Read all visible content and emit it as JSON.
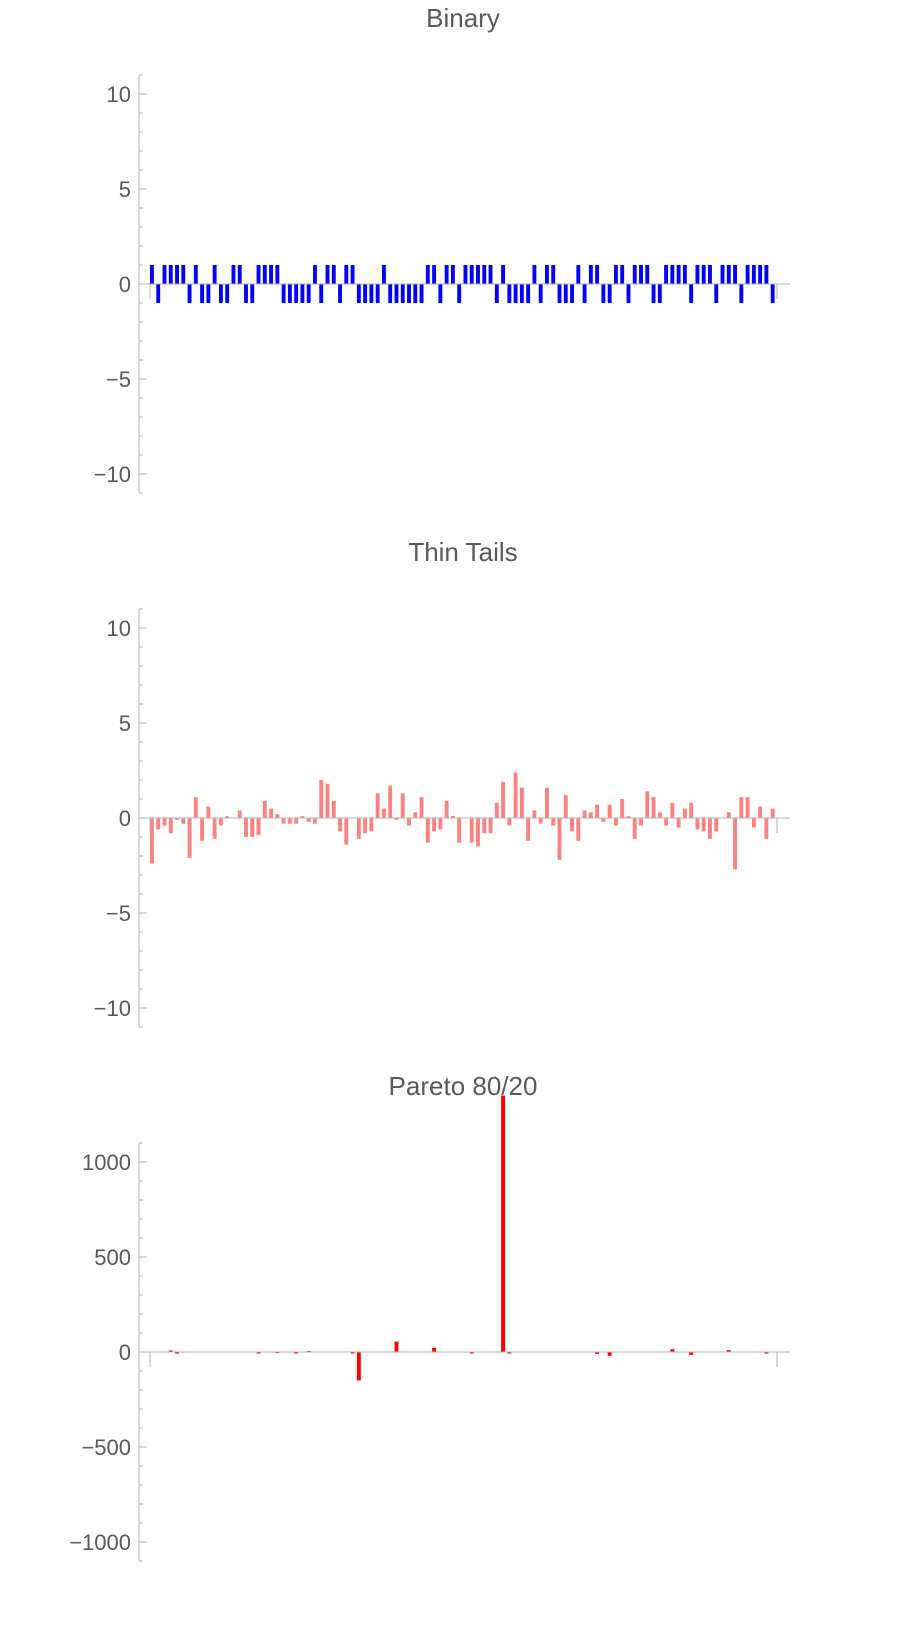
{
  "chart_data": [
    {
      "type": "bar",
      "title": "Binary",
      "xlabel": "",
      "ylabel": "",
      "ylim": [
        -11,
        11
      ],
      "yticks": [
        -10,
        -5,
        0,
        5,
        10
      ],
      "ytick_labels": [
        "−10",
        "−5",
        "0",
        "5",
        "10"
      ],
      "grid": false,
      "color": "#0000ff",
      "x": [
        1,
        2,
        3,
        4,
        5,
        6,
        7,
        8,
        9,
        10,
        11,
        12,
        13,
        14,
        15,
        16,
        17,
        18,
        19,
        20,
        21,
        22,
        23,
        24,
        25,
        26,
        27,
        28,
        29,
        30,
        31,
        32,
        33,
        34,
        35,
        36,
        37,
        38,
        39,
        40,
        41,
        42,
        43,
        44,
        45,
        46,
        47,
        48,
        49,
        50,
        51,
        52,
        53,
        54,
        55,
        56,
        57,
        58,
        59,
        60,
        61,
        62,
        63,
        64,
        65,
        66,
        67,
        68,
        69,
        70,
        71,
        72,
        73,
        74,
        75,
        76,
        77,
        78,
        79,
        80,
        81,
        82,
        83,
        84,
        85,
        86,
        87,
        88,
        89,
        90,
        91,
        92,
        93,
        94,
        95,
        96,
        97,
        98,
        99,
        100
      ],
      "values": [
        1,
        -1,
        1,
        1,
        1,
        1,
        -1,
        1,
        -1,
        -1,
        1,
        -1,
        -1,
        1,
        1,
        -1,
        -1,
        1,
        1,
        1,
        1,
        -1,
        -1,
        -1,
        -1,
        -1,
        1,
        -1,
        1,
        1,
        -1,
        1,
        1,
        -1,
        -1,
        -1,
        -1,
        1,
        -1,
        -1,
        -1,
        -1,
        -1,
        -1,
        1,
        1,
        -1,
        1,
        1,
        -1,
        1,
        1,
        1,
        1,
        1,
        -1,
        1,
        -1,
        -1,
        -1,
        -1,
        1,
        -1,
        1,
        1,
        -1,
        -1,
        -1,
        1,
        -1,
        1,
        1,
        -1,
        -1,
        1,
        1,
        -1,
        1,
        1,
        1,
        -1,
        -1,
        1,
        1,
        1,
        1,
        -1,
        1,
        1,
        1,
        -1,
        1,
        1,
        1,
        -1,
        1,
        1,
        1,
        1,
        -1
      ]
    },
    {
      "type": "bar",
      "title": "Thin Tails",
      "xlabel": "",
      "ylabel": "",
      "ylim": [
        -11,
        11
      ],
      "yticks": [
        -10,
        -5,
        0,
        5,
        10
      ],
      "ytick_labels": [
        "−10",
        "−5",
        "0",
        "5",
        "10"
      ],
      "grid": false,
      "color": "#ff8080",
      "x": [
        1,
        2,
        3,
        4,
        5,
        6,
        7,
        8,
        9,
        10,
        11,
        12,
        13,
        14,
        15,
        16,
        17,
        18,
        19,
        20,
        21,
        22,
        23,
        24,
        25,
        26,
        27,
        28,
        29,
        30,
        31,
        32,
        33,
        34,
        35,
        36,
        37,
        38,
        39,
        40,
        41,
        42,
        43,
        44,
        45,
        46,
        47,
        48,
        49,
        50,
        51,
        52,
        53,
        54,
        55,
        56,
        57,
        58,
        59,
        60,
        61,
        62,
        63,
        64,
        65,
        66,
        67,
        68,
        69,
        70,
        71,
        72,
        73,
        74,
        75,
        76,
        77,
        78,
        79,
        80,
        81,
        82,
        83,
        84,
        85,
        86,
        87,
        88,
        89,
        90,
        91,
        92,
        93,
        94,
        95,
        96,
        97,
        98,
        99,
        100
      ],
      "values": [
        -2.4,
        -0.6,
        -0.4,
        -0.8,
        -0.1,
        -0.3,
        -2.1,
        1.1,
        -1.2,
        0.6,
        -1.1,
        -0.4,
        0.1,
        0,
        0.4,
        -1.0,
        -1.0,
        -0.9,
        0.9,
        0.5,
        0.2,
        -0.3,
        -0.3,
        -0.3,
        0.1,
        -0.2,
        -0.3,
        2.0,
        1.8,
        0.9,
        -0.7,
        -1.4,
        0,
        -1.1,
        -0.8,
        -0.7,
        1.3,
        0.5,
        1.7,
        -0.1,
        1.3,
        -0.4,
        0.3,
        1.1,
        -1.3,
        -0.7,
        -0.6,
        0.9,
        0.1,
        -1.3,
        0,
        -1.3,
        -1.5,
        -0.8,
        -0.8,
        0.8,
        1.9,
        -0.4,
        2.4,
        1.6,
        -1.2,
        0.4,
        -0.3,
        1.6,
        -0.4,
        -2.2,
        1.2,
        -0.7,
        -1.2,
        0.4,
        0.3,
        0.7,
        -0.2,
        0.7,
        -0.4,
        1.0,
        0.1,
        -1.1,
        -0.4,
        1.4,
        1.1,
        0.3,
        -0.4,
        0.8,
        -0.5,
        0.5,
        0.8,
        -0.6,
        -0.7,
        -1.1,
        -0.7,
        0,
        0.3,
        -2.7,
        1.1,
        1.1,
        -0.5,
        0.6,
        -1.1,
        0.5
      ]
    },
    {
      "type": "bar",
      "title": "Pareto 80/20",
      "xlabel": "",
      "ylabel": "",
      "ylim": [
        -1100,
        1100
      ],
      "yticks": [
        -1000,
        -500,
        0,
        500,
        1000
      ],
      "ytick_labels": [
        "−1000",
        "−500",
        "0",
        "500",
        "1000"
      ],
      "grid": false,
      "color": "#ff0000",
      "x": [
        1,
        2,
        3,
        4,
        5,
        6,
        7,
        8,
        9,
        10,
        11,
        12,
        13,
        14,
        15,
        16,
        17,
        18,
        19,
        20,
        21,
        22,
        23,
        24,
        25,
        26,
        27,
        28,
        29,
        30,
        31,
        32,
        33,
        34,
        35,
        36,
        37,
        38,
        39,
        40,
        41,
        42,
        43,
        44,
        45,
        46,
        47,
        48,
        49,
        50,
        51,
        52,
        53,
        54,
        55,
        56,
        57,
        58,
        59,
        60,
        61,
        62,
        63,
        64,
        65,
        66,
        67,
        68,
        69,
        70,
        71,
        72,
        73,
        74,
        75,
        76,
        77,
        78,
        79,
        80,
        81,
        82,
        83,
        84,
        85,
        86,
        87,
        88,
        89,
        90,
        91,
        92,
        93,
        94,
        95,
        96,
        97,
        98,
        99,
        100
      ],
      "values": [
        0,
        0,
        0,
        8,
        -5,
        0,
        0,
        0,
        0,
        0,
        0,
        0,
        0,
        0,
        0,
        0,
        0,
        -4,
        0,
        0,
        2,
        0,
        0,
        -5,
        0,
        5,
        0,
        0,
        0,
        0,
        0,
        0,
        -3,
        -150,
        0,
        0,
        0,
        0,
        0,
        55,
        0,
        0,
        0,
        0,
        0,
        22,
        0,
        0,
        0,
        0,
        0,
        -4,
        0,
        0,
        0,
        0,
        1350,
        -8,
        0,
        0,
        0,
        0,
        0,
        0,
        0,
        0,
        0,
        0,
        0,
        0,
        0,
        -10,
        0,
        -20,
        0,
        0,
        0,
        0,
        0,
        0,
        0,
        0,
        0,
        15,
        0,
        0,
        -15,
        0,
        0,
        0,
        0,
        0,
        10,
        0,
        0,
        0,
        0,
        0,
        -5,
        0
      ]
    }
  ]
}
